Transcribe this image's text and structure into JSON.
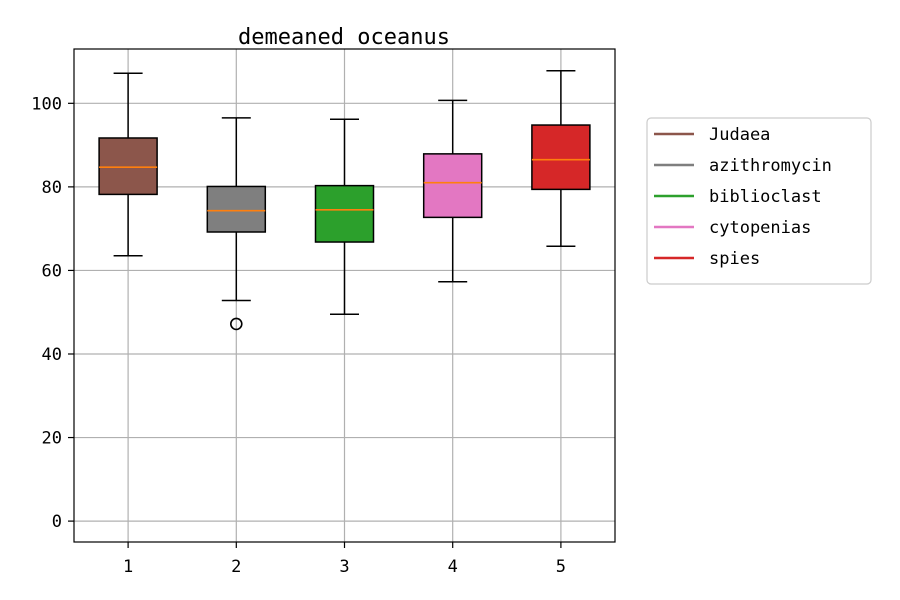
{
  "chart_data": {
    "type": "box",
    "title": "demeaned oceanus",
    "xlabel": "",
    "ylabel": "",
    "categories": [
      "1",
      "2",
      "3",
      "4",
      "5"
    ],
    "ylim": [
      -5,
      113
    ],
    "yticks": [
      0,
      20,
      40,
      60,
      80,
      100
    ],
    "grid": true,
    "legend_position": "outside-right",
    "series": [
      {
        "name": "Judaea",
        "color": "#8c564b",
        "whisker_low": 63.5,
        "q1": 78.2,
        "median": 84.7,
        "q3": 91.7,
        "whisker_high": 107.2,
        "outliers": []
      },
      {
        "name": "azithromycin",
        "color": "#7f7f7f",
        "whisker_low": 52.8,
        "q1": 69.2,
        "median": 74.3,
        "q3": 80.1,
        "whisker_high": 96.5,
        "outliers": [
          47.2
        ]
      },
      {
        "name": "biblioclast",
        "color": "#2ca02c",
        "whisker_low": 49.5,
        "q1": 66.8,
        "median": 74.5,
        "q3": 80.3,
        "whisker_high": 96.2,
        "outliers": []
      },
      {
        "name": "cytopenias",
        "color": "#e377c2",
        "whisker_low": 57.3,
        "q1": 72.7,
        "median": 81.0,
        "q3": 87.9,
        "whisker_high": 100.7,
        "outliers": []
      },
      {
        "name": "spies",
        "color": "#d62728",
        "whisker_low": 65.8,
        "q1": 79.4,
        "median": 86.5,
        "q3": 94.8,
        "whisker_high": 107.8,
        "outliers": []
      }
    ]
  }
}
